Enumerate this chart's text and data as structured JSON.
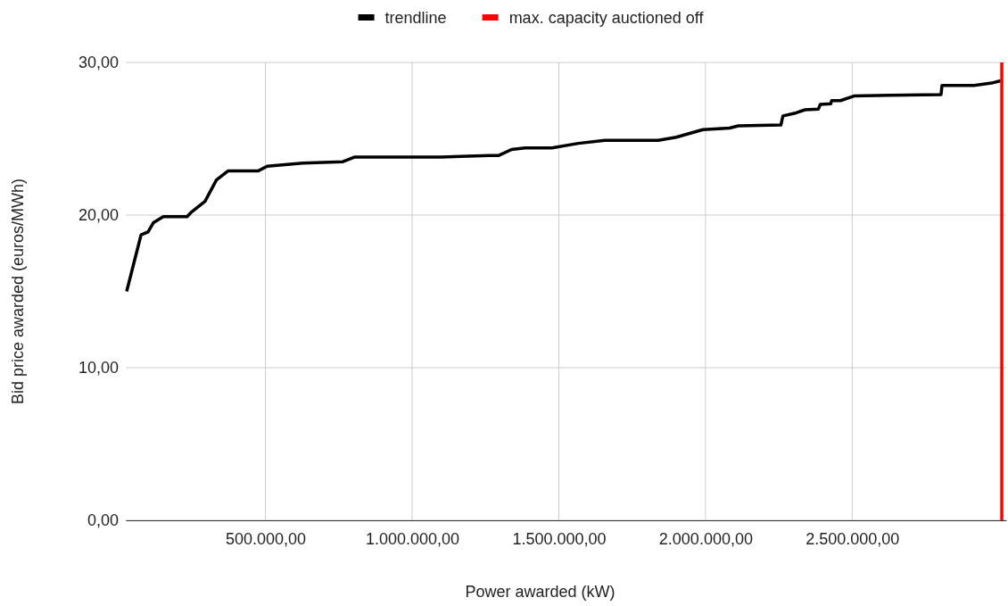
{
  "chart_data": {
    "type": "line",
    "xlabel": "Power awarded (kW)",
    "ylabel": "Bid price awarded (euros/MWh)",
    "xlim": [
      24000,
      3025000
    ],
    "ylim": [
      0,
      30
    ],
    "xticks": [
      {
        "value": 500000,
        "label": "500.000,00"
      },
      {
        "value": 1000000,
        "label": "1.000.000,00"
      },
      {
        "value": 1500000,
        "label": "1.500.000,00"
      },
      {
        "value": 2000000,
        "label": "2.000.000,00"
      },
      {
        "value": 2500000,
        "label": "2.500.000,00"
      }
    ],
    "yticks": [
      {
        "value": 0,
        "label": "0,00"
      },
      {
        "value": 10,
        "label": "10,00"
      },
      {
        "value": 20,
        "label": "20,00"
      },
      {
        "value": 30,
        "label": "30,00"
      }
    ],
    "grid": true,
    "legend": "top",
    "marker": "none",
    "line_style": "solid",
    "series": [
      {
        "name": "trendline",
        "color": "#000000",
        "x": [
          27000,
          76000,
          100000,
          118000,
          152000,
          233000,
          248000,
          294000,
          333000,
          373000,
          476000,
          506000,
          627000,
          764000,
          803000,
          991000,
          1097000,
          1264000,
          1294000,
          1339000,
          1385000,
          1476000,
          1567000,
          1657000,
          1839000,
          1900000,
          1991000,
          2082000,
          2112000,
          2257000,
          2264000,
          2309000,
          2339000,
          2385000,
          2391000,
          2427000,
          2430000,
          2460000,
          2506000,
          2627000,
          2803000,
          2806000,
          2915000,
          2975000,
          3006000
        ],
        "values": [
          15.0,
          18.7,
          18.9,
          19.5,
          19.9,
          19.9,
          20.2,
          20.9,
          22.3,
          22.9,
          22.9,
          23.2,
          23.4,
          23.5,
          23.8,
          23.8,
          23.8,
          23.9,
          23.9,
          24.3,
          24.4,
          24.4,
          24.7,
          24.9,
          24.9,
          25.1,
          25.6,
          25.7,
          25.85,
          25.9,
          26.5,
          26.7,
          26.9,
          26.95,
          27.25,
          27.3,
          27.5,
          27.5,
          27.8,
          27.85,
          27.9,
          28.5,
          28.5,
          28.65,
          28.8
        ]
      },
      {
        "name": "max. capacity auctioned off",
        "color": "#ff0000",
        "x": [
          3010000,
          3010000
        ],
        "values": [
          0,
          30
        ]
      }
    ]
  }
}
